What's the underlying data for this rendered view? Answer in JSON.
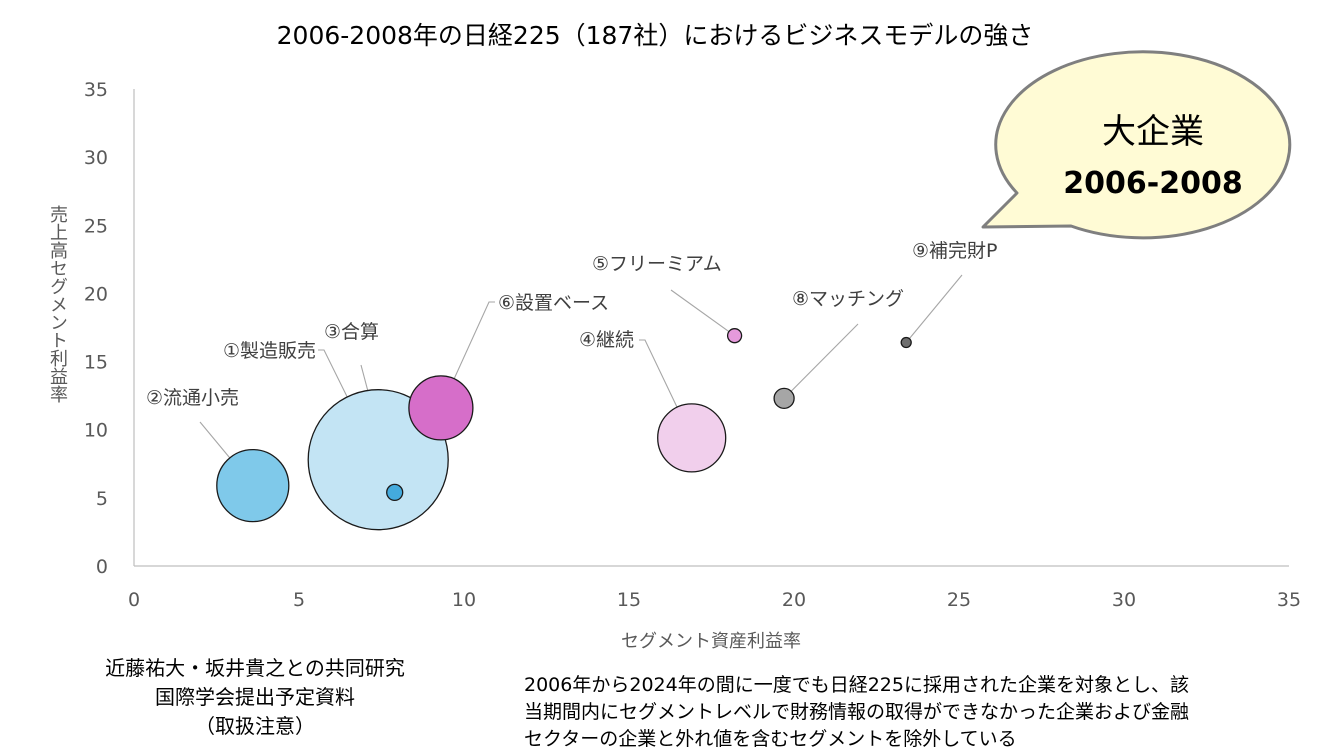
{
  "chart_data": {
    "type": "bubble",
    "title": "2006-2008年の日経225（187社）におけるビジネスモデルの強さ",
    "xlabel": "セグメント資産利益率",
    "ylabel": "売上高セグメント利益率",
    "xlim": [
      0,
      35
    ],
    "ylim": [
      0,
      35
    ],
    "xticks": [
      "0",
      "5",
      "10",
      "15",
      "20",
      "25",
      "30",
      "35"
    ],
    "yticks": [
      "0",
      "5",
      "10",
      "15",
      "20",
      "25",
      "30",
      "35"
    ],
    "grid": false,
    "series": [
      {
        "name": "①製造販売",
        "x": 7.4,
        "y": 7.8,
        "size": 70,
        "color": "#C3E4F4"
      },
      {
        "name": "②流通小売",
        "x": 3.6,
        "y": 5.9,
        "size": 36,
        "color": "#7FC9EA"
      },
      {
        "name": "③合算",
        "x": 7.9,
        "y": 5.4,
        "size": 8,
        "color": "#44AADD"
      },
      {
        "name": "④継続",
        "x": 16.9,
        "y": 9.4,
        "size": 34,
        "color": "#F1CFEC"
      },
      {
        "name": "⑤フリーミアム",
        "x": 18.2,
        "y": 16.9,
        "size": 7,
        "color": "#E59ADB"
      },
      {
        "name": "⑥設置ベース",
        "x": 9.3,
        "y": 11.6,
        "size": 32,
        "color": "#D66EC9"
      },
      {
        "name": "⑧マッチング",
        "x": 19.7,
        "y": 12.3,
        "size": 10,
        "color": "#A6A6A6"
      },
      {
        "name": "⑨補完財P",
        "x": 23.4,
        "y": 16.4,
        "size": 5,
        "color": "#6F6F6F"
      }
    ]
  },
  "callout": {
    "line1": "大企業",
    "line2": "2006-2008",
    "fill": "#FFFBD5",
    "stroke": "#7F7F7F"
  },
  "notes": {
    "left": [
      "近藤祐大・坂井貴之との共同研究",
      "国際学会提出予定資料",
      "（取扱注意）"
    ],
    "right": [
      "2006年から2024年の間に一度でも日経225に採用された企業を対象とし、該",
      "当期間内にセグメントレベルで財務情報の取得ができなかった企業および金融",
      "セクターの企業と外れ値を含むセグメントを除外している"
    ]
  }
}
